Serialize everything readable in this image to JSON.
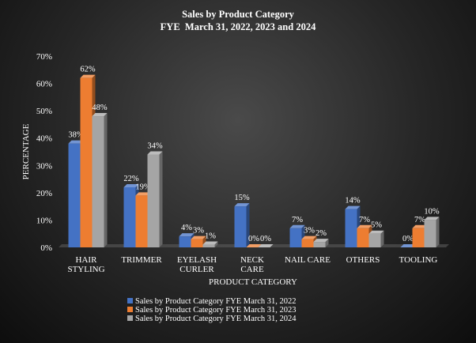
{
  "chart_data": {
    "type": "bar",
    "title": "Sales by Product Category",
    "subtitle": "FYE  March 31, 2022, 2023 and 2024",
    "xlabel": "PRODUCT CATEGORY",
    "ylabel": "PERCENTAGE",
    "ylim": [
      0,
      70
    ],
    "yticks": [
      "0%",
      "10%",
      "20%",
      "30%",
      "40%",
      "50%",
      "60%",
      "70%"
    ],
    "categories": [
      [
        "HAIR",
        "STYLING"
      ],
      [
        "TRIMMER"
      ],
      [
        "EYELASH",
        "CURLER"
      ],
      [
        "NECK",
        "CARE"
      ],
      [
        "NAIL CARE"
      ],
      [
        "OTHERS"
      ],
      [
        "TOOLING"
      ]
    ],
    "series": [
      {
        "name": "Sales by Product Category FYE March 31, 2022",
        "color": "#4472C4",
        "values": [
          38,
          22,
          4,
          15,
          7,
          14,
          0
        ],
        "labels": [
          "38%",
          "22%",
          "4%",
          "15%",
          "7%",
          "14%",
          "0%"
        ]
      },
      {
        "name": "Sales by Product Category FYE March 31, 2023",
        "color": "#ED7D31",
        "values": [
          62,
          19,
          3,
          0,
          3,
          7,
          7
        ],
        "labels": [
          "62%",
          "19%",
          "3%",
          "0%",
          "3%",
          "7%",
          "7%"
        ]
      },
      {
        "name": "Sales by Product Category FYE March 31, 2024",
        "color": "#A5A5A5",
        "values": [
          48,
          34,
          1,
          0,
          2,
          5,
          10
        ],
        "labels": [
          "48%",
          "34%",
          "1%",
          "0%",
          "2%",
          "5%",
          "10%"
        ]
      }
    ],
    "grid": false,
    "legend_position": "bottom"
  }
}
